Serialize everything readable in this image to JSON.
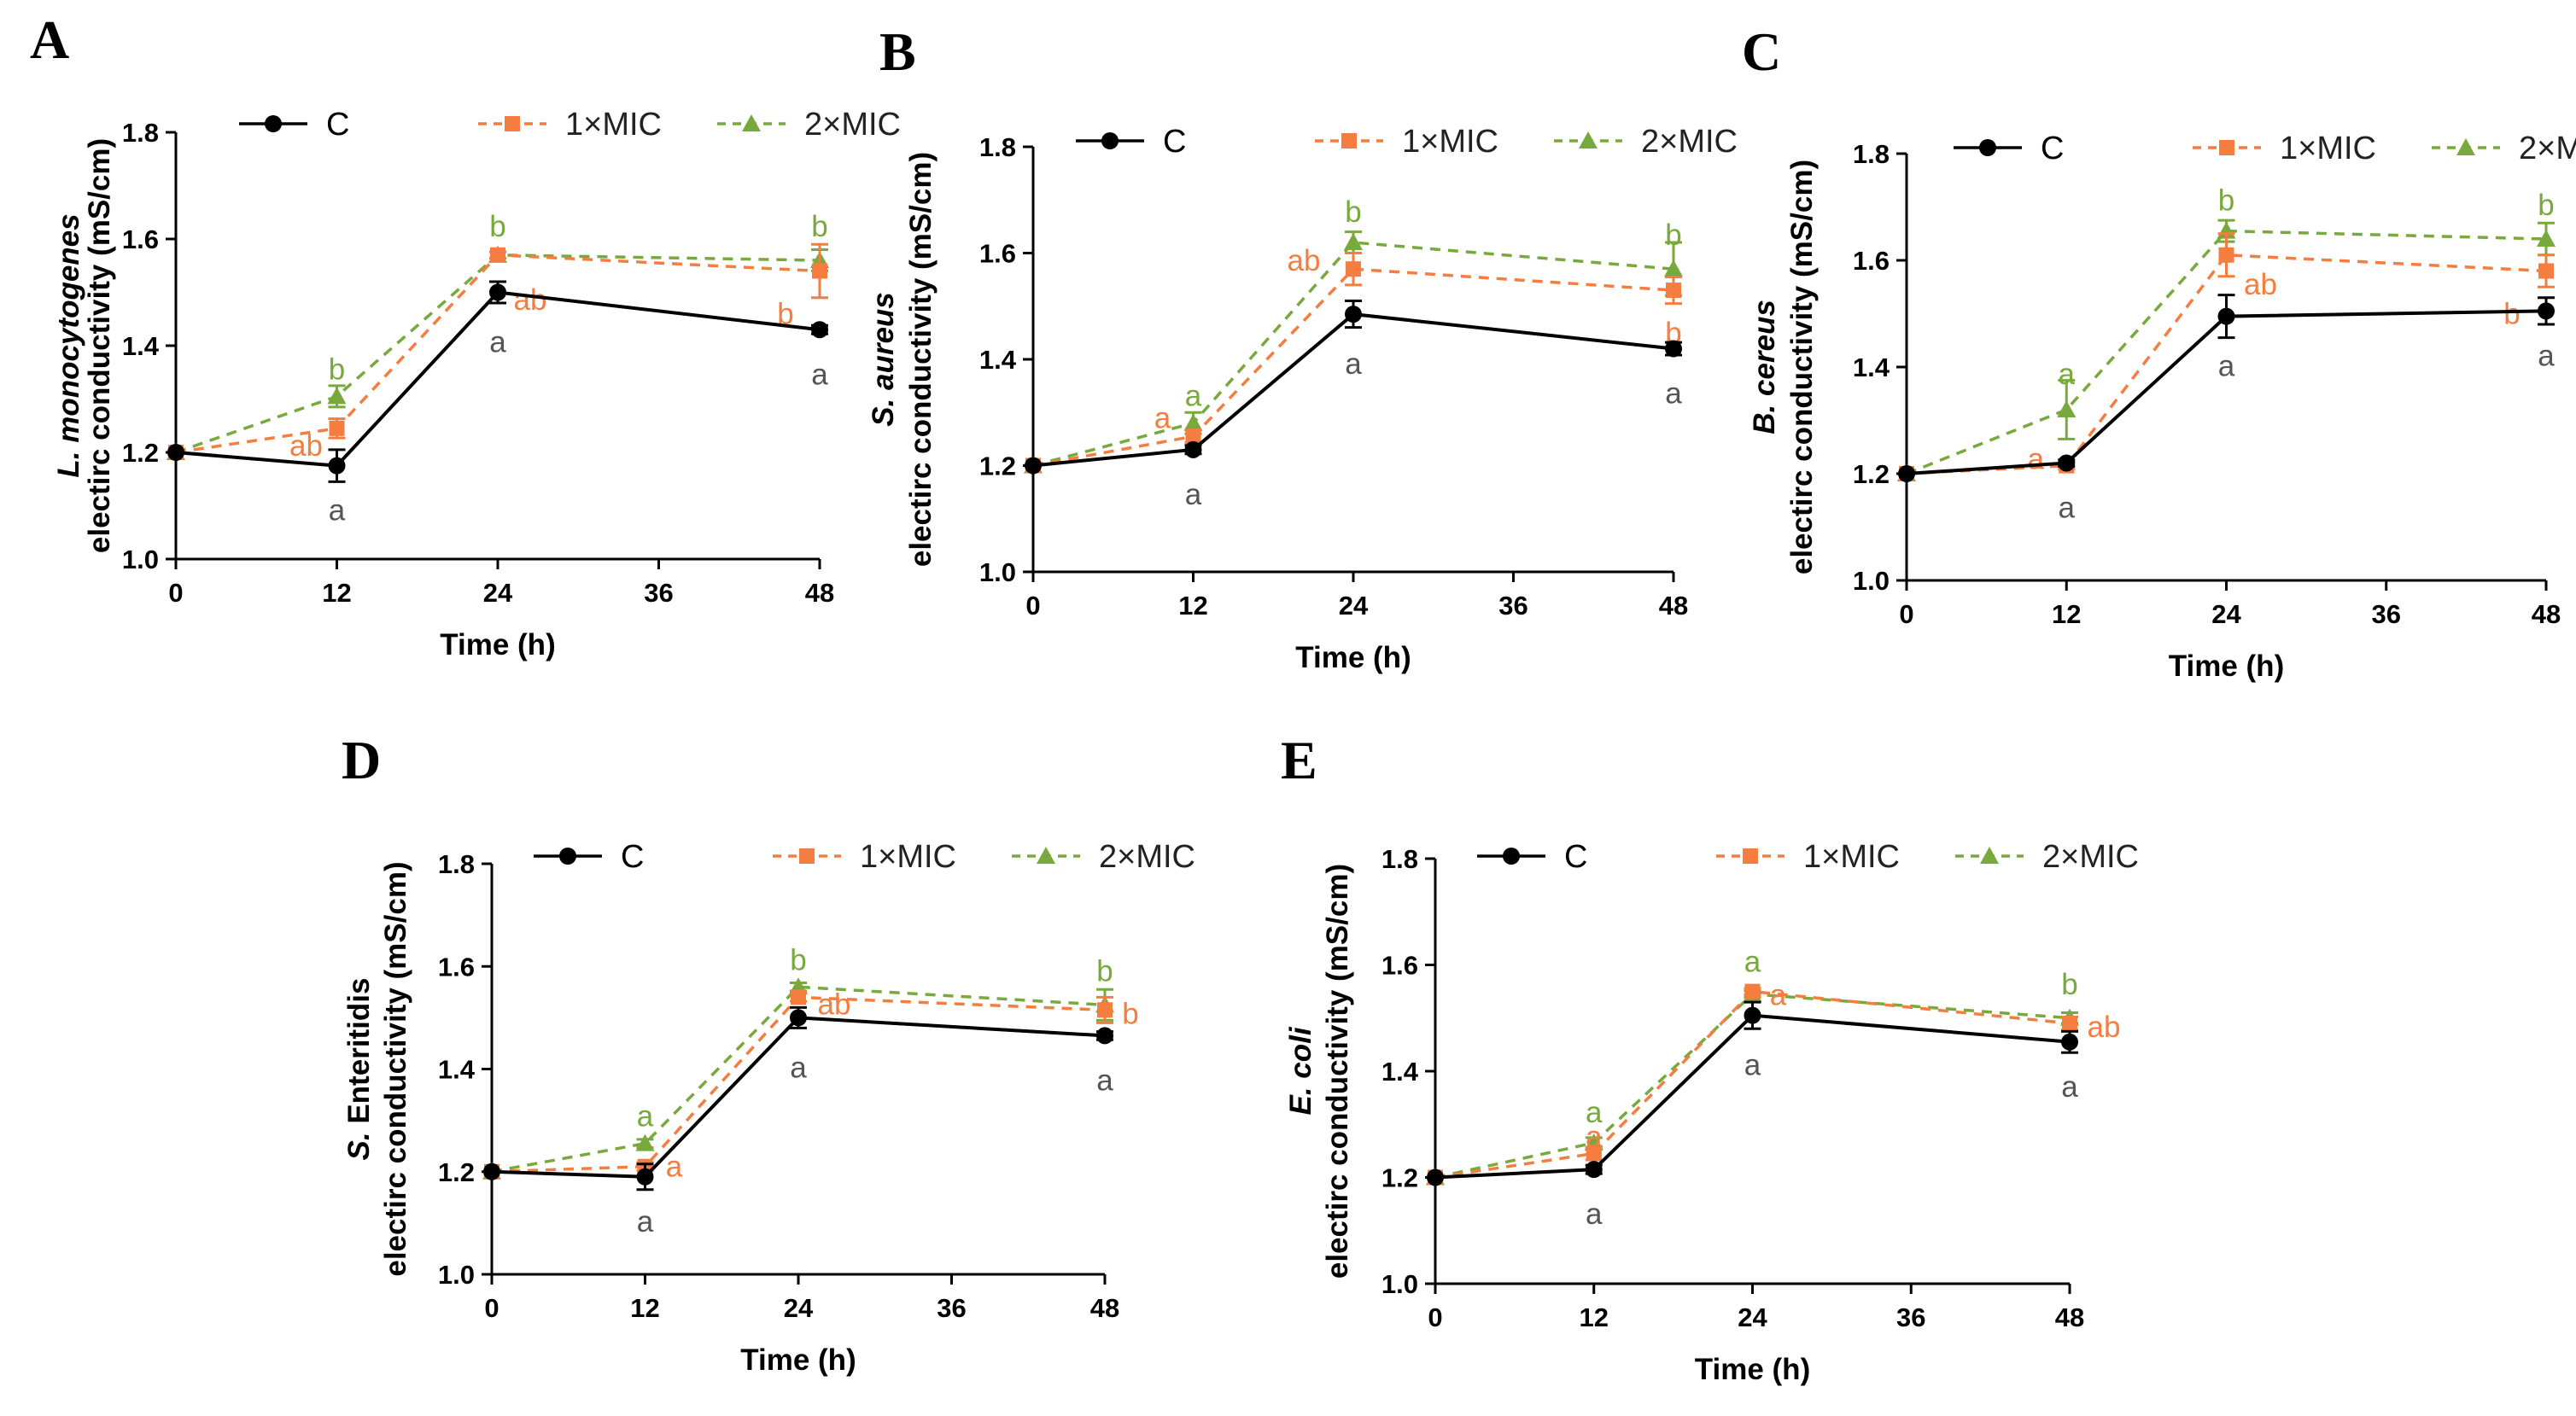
{
  "colors": {
    "C": "#000000",
    "1×MIC": "#f47d3f",
    "2×MIC": "#78a93c"
  },
  "legend": [
    "C",
    "1×MIC",
    "2×MIC"
  ],
  "chart_data": [
    {
      "panel": "A",
      "type": "line",
      "ylabel_italic": "L. monocytogenes",
      "ylabel": "electirc conductivity (mS/cm)",
      "xlabel": "Time (h)",
      "xlim": [
        0,
        48
      ],
      "ylim": [
        1.0,
        1.8
      ],
      "xticks": [
        0,
        12,
        24,
        36,
        48
      ],
      "yticks": [
        1.0,
        1.2,
        1.4,
        1.6,
        1.8
      ],
      "x": [
        0,
        12,
        24,
        48
      ],
      "series": [
        {
          "name": "C",
          "values": [
            1.2,
            1.175,
            1.5,
            1.43
          ],
          "err": [
            0,
            0.03,
            0.02,
            0.008
          ],
          "sig": [
            "",
            "a",
            "a",
            "a"
          ]
        },
        {
          "name": "1×MIC",
          "values": [
            1.2,
            1.245,
            1.57,
            1.54
          ],
          "err": [
            0,
            0.018,
            0.006,
            0.05
          ],
          "sig": [
            "",
            "ab",
            "ab",
            "b"
          ]
        },
        {
          "name": "2×MIC",
          "values": [
            1.2,
            1.305,
            1.57,
            1.56
          ],
          "err": [
            0,
            0.02,
            0.006,
            0.02
          ],
          "sig": [
            "",
            "b",
            "b",
            "b"
          ]
        }
      ]
    },
    {
      "panel": "B",
      "type": "line",
      "ylabel_italic": "S. aureus",
      "ylabel": "electirc conductivity (mS/cm)",
      "xlabel": "Time (h)",
      "xlim": [
        0,
        48
      ],
      "ylim": [
        1.0,
        1.8
      ],
      "xticks": [
        0,
        12,
        24,
        36,
        48
      ],
      "yticks": [
        1.0,
        1.2,
        1.4,
        1.6,
        1.8
      ],
      "x": [
        0,
        12,
        24,
        48
      ],
      "series": [
        {
          "name": "C",
          "values": [
            1.2,
            1.23,
            1.485,
            1.42
          ],
          "err": [
            0,
            0.008,
            0.025,
            0.012
          ],
          "sig": [
            "",
            "a",
            "a",
            "a"
          ]
        },
        {
          "name": "1×MIC",
          "values": [
            1.2,
            1.255,
            1.57,
            1.53
          ],
          "err": [
            0,
            0.012,
            0.03,
            0.025
          ],
          "sig": [
            "",
            "a",
            "ab",
            "b"
          ]
        },
        {
          "name": "2×MIC",
          "values": [
            1.2,
            1.28,
            1.62,
            1.57
          ],
          "err": [
            0,
            0.02,
            0.02,
            0.05
          ],
          "sig": [
            "",
            "a",
            "b",
            "b"
          ]
        }
      ]
    },
    {
      "panel": "C",
      "type": "line",
      "ylabel_italic": "B. cereus",
      "ylabel": "electirc conductivity (mS/cm)",
      "xlabel": "Time (h)",
      "xlim": [
        0,
        48
      ],
      "ylim": [
        1.0,
        1.8
      ],
      "xticks": [
        0,
        12,
        24,
        36,
        48
      ],
      "yticks": [
        1.0,
        1.2,
        1.4,
        1.6,
        1.8
      ],
      "x": [
        0,
        12,
        24,
        48
      ],
      "series": [
        {
          "name": "C",
          "values": [
            1.2,
            1.22,
            1.495,
            1.505
          ],
          "err": [
            0,
            0.006,
            0.04,
            0.025
          ],
          "sig": [
            "",
            "a",
            "a",
            "a"
          ]
        },
        {
          "name": "1×MIC",
          "values": [
            1.2,
            1.215,
            1.61,
            1.58
          ],
          "err": [
            0,
            0.006,
            0.04,
            0.03
          ],
          "sig": [
            "",
            "a",
            "ab",
            "b"
          ]
        },
        {
          "name": "2×MIC",
          "values": [
            1.2,
            1.32,
            1.655,
            1.64
          ],
          "err": [
            0,
            0.055,
            0.02,
            0.03
          ],
          "sig": [
            "",
            "a",
            "b",
            "b"
          ]
        }
      ]
    },
    {
      "panel": "D",
      "type": "line",
      "ylabel_italic": "S. Enteritidis",
      "ylabel_italic_part": "S.",
      "ylabel_rest": " Enteritidis",
      "ylabel": "electirc conductivity (mS/cm)",
      "xlabel": "Time (h)",
      "xlim": [
        0,
        48
      ],
      "ylim": [
        1.0,
        1.8
      ],
      "xticks": [
        0,
        12,
        24,
        36,
        48
      ],
      "yticks": [
        1.0,
        1.2,
        1.4,
        1.6,
        1.8
      ],
      "x": [
        0,
        12,
        24,
        48
      ],
      "series": [
        {
          "name": "C",
          "values": [
            1.2,
            1.19,
            1.5,
            1.465
          ],
          "err": [
            0,
            0.025,
            0.02,
            0.008
          ],
          "sig": [
            "",
            "a",
            "a",
            "a"
          ]
        },
        {
          "name": "1×MIC",
          "values": [
            1.2,
            1.21,
            1.54,
            1.515
          ],
          "err": [
            0,
            0.008,
            0.008,
            0.025
          ],
          "sig": [
            "",
            "a",
            "ab",
            "b"
          ]
        },
        {
          "name": "2×MIC",
          "values": [
            1.2,
            1.255,
            1.56,
            1.525
          ],
          "err": [
            0,
            0.008,
            0.008,
            0.03
          ],
          "sig": [
            "",
            "a",
            "b",
            "b"
          ]
        }
      ]
    },
    {
      "panel": "E",
      "type": "line",
      "ylabel_italic": "E. coli",
      "ylabel": "electirc conductivity (mS/cm)",
      "xlabel": "Time (h)",
      "xlim": [
        0,
        48
      ],
      "ylim": [
        1.0,
        1.8
      ],
      "xticks": [
        0,
        12,
        24,
        36,
        48
      ],
      "yticks": [
        1.0,
        1.2,
        1.4,
        1.6,
        1.8
      ],
      "x": [
        0,
        12,
        24,
        48
      ],
      "series": [
        {
          "name": "C",
          "values": [
            1.2,
            1.215,
            1.505,
            1.455
          ],
          "err": [
            0,
            0.008,
            0.025,
            0.02
          ],
          "sig": [
            "",
            "a",
            "a",
            "a"
          ]
        },
        {
          "name": "1×MIC",
          "values": [
            1.2,
            1.245,
            1.55,
            1.49
          ],
          "err": [
            0,
            0.012,
            0.006,
            0.012
          ],
          "sig": [
            "",
            "a",
            "a",
            "ab"
          ]
        },
        {
          "name": "2×MIC",
          "values": [
            1.2,
            1.265,
            1.545,
            1.5
          ],
          "err": [
            0,
            0.01,
            0.006,
            0.01
          ],
          "sig": [
            "",
            "a",
            "a",
            "b"
          ]
        }
      ]
    }
  ]
}
